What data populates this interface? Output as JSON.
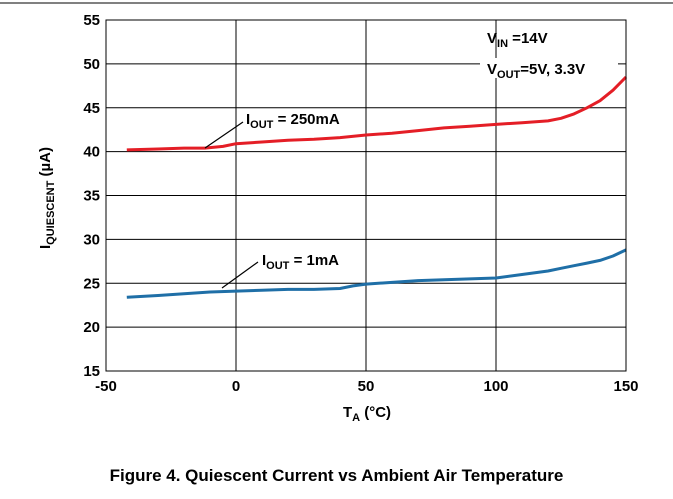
{
  "chart_data": {
    "type": "line",
    "xlim": [
      -50,
      150
    ],
    "ylim": [
      15,
      55
    ],
    "x_ticks": [
      -50,
      0,
      50,
      100,
      150
    ],
    "y_ticks": [
      15,
      20,
      25,
      30,
      35,
      40,
      45,
      50,
      55
    ],
    "grid": true,
    "xlabel": {
      "main": "T",
      "sub": "A",
      "unit": " (°C)"
    },
    "ylabel": {
      "main": "I",
      "sub": "QUIESCENT",
      "unit": " (µA)"
    },
    "conditions": [
      {
        "main": "V",
        "sub": "IN",
        "text": " =14V"
      },
      {
        "main": "V",
        "sub": "OUT",
        "text": "=5V, 3.3V"
      }
    ],
    "series": [
      {
        "name_main": "I",
        "name_sub": "OUT",
        "name_text": " = 250mA",
        "color": "#e41e26",
        "x": [
          -42,
          -30,
          -20,
          -12,
          -5,
          0,
          10,
          20,
          30,
          40,
          50,
          60,
          70,
          80,
          90,
          100,
          110,
          120,
          125,
          130,
          135,
          140,
          145,
          150
        ],
        "y": [
          40.2,
          40.3,
          40.4,
          40.4,
          40.6,
          40.9,
          41.1,
          41.3,
          41.4,
          41.6,
          41.9,
          42.1,
          42.4,
          42.7,
          42.9,
          43.1,
          43.3,
          43.5,
          43.8,
          44.3,
          45.0,
          45.8,
          47.0,
          48.5
        ]
      },
      {
        "name_main": "I",
        "name_sub": "OUT",
        "name_text": " = 1mA",
        "color": "#1f6fa7",
        "x": [
          -42,
          -30,
          -20,
          -10,
          0,
          10,
          20,
          30,
          40,
          45,
          50,
          60,
          70,
          80,
          90,
          100,
          110,
          120,
          125,
          130,
          135,
          140,
          145,
          150
        ],
        "y": [
          23.4,
          23.6,
          23.8,
          24.0,
          24.1,
          24.2,
          24.3,
          24.3,
          24.4,
          24.7,
          24.9,
          25.1,
          25.3,
          25.4,
          25.5,
          25.6,
          26.0,
          26.4,
          26.7,
          27.0,
          27.3,
          27.6,
          28.1,
          28.8
        ]
      }
    ]
  },
  "figure_caption": "Figure 4. Quiescent Current vs Ambient Air Temperature"
}
